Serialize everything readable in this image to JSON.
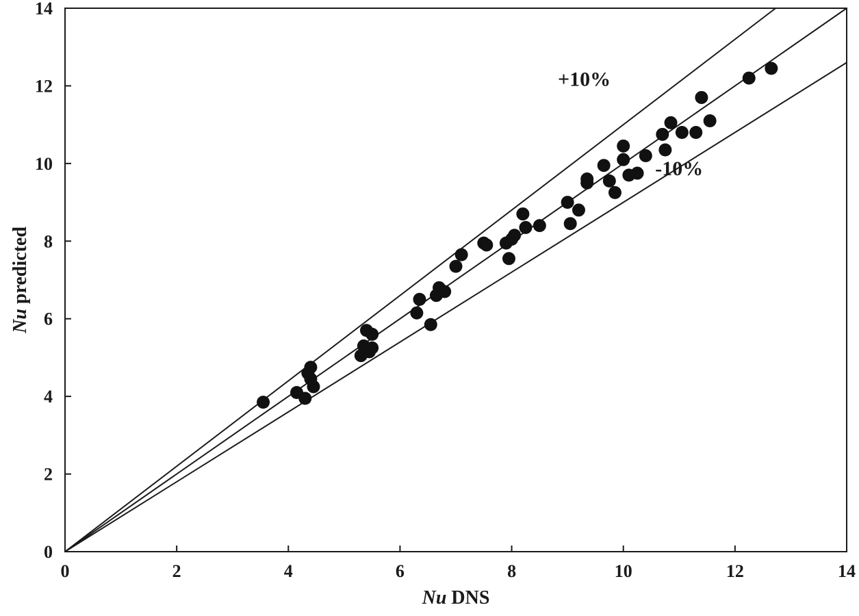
{
  "chart_data": {
    "type": "scatter",
    "title": "",
    "xlabel_italic": "Nu",
    "xlabel_rest": "DNS",
    "ylabel_italic": "Nu",
    "ylabel_rest": "predicted",
    "xlim": [
      0,
      14
    ],
    "ylim": [
      0,
      14
    ],
    "xticks": [
      0,
      2,
      4,
      6,
      8,
      10,
      12,
      14
    ],
    "yticks": [
      0,
      2,
      4,
      6,
      8,
      10,
      12,
      14
    ],
    "grid": false,
    "reference_lines": [
      {
        "name": "parity",
        "slope": 1.0
      },
      {
        "name": "plus-10-percent",
        "slope": 1.1,
        "label": "+10%"
      },
      {
        "name": "minus-10-percent",
        "slope": 0.9,
        "label": "-10%"
      }
    ],
    "annotations": [
      {
        "text": "+10%",
        "at": [
          9.3,
          12.0
        ]
      },
      {
        "text": "-10%",
        "at": [
          11.0,
          9.7
        ]
      }
    ],
    "series": [
      {
        "name": "data",
        "points": [
          [
            3.55,
            3.85
          ],
          [
            4.15,
            4.1
          ],
          [
            4.3,
            3.95
          ],
          [
            4.35,
            4.6
          ],
          [
            4.4,
            4.75
          ],
          [
            4.4,
            4.45
          ],
          [
            4.45,
            4.25
          ],
          [
            5.3,
            5.05
          ],
          [
            5.35,
            5.3
          ],
          [
            5.4,
            5.7
          ],
          [
            5.45,
            5.15
          ],
          [
            5.5,
            5.25
          ],
          [
            5.5,
            5.6
          ],
          [
            6.3,
            6.15
          ],
          [
            6.35,
            6.5
          ],
          [
            6.55,
            5.85
          ],
          [
            6.65,
            6.6
          ],
          [
            6.7,
            6.8
          ],
          [
            6.8,
            6.7
          ],
          [
            7.0,
            7.35
          ],
          [
            7.1,
            7.65
          ],
          [
            7.5,
            7.95
          ],
          [
            7.55,
            7.9
          ],
          [
            7.9,
            7.95
          ],
          [
            7.95,
            7.55
          ],
          [
            8.0,
            8.05
          ],
          [
            8.05,
            8.15
          ],
          [
            8.2,
            8.7
          ],
          [
            8.25,
            8.35
          ],
          [
            8.5,
            8.4
          ],
          [
            9.0,
            9.0
          ],
          [
            9.05,
            8.45
          ],
          [
            9.2,
            8.8
          ],
          [
            9.35,
            9.5
          ],
          [
            9.35,
            9.6
          ],
          [
            9.65,
            9.95
          ],
          [
            9.75,
            9.55
          ],
          [
            9.85,
            9.25
          ],
          [
            10.0,
            10.45
          ],
          [
            10.0,
            10.1
          ],
          [
            10.1,
            9.7
          ],
          [
            10.25,
            9.75
          ],
          [
            10.4,
            10.2
          ],
          [
            10.7,
            10.75
          ],
          [
            10.75,
            10.35
          ],
          [
            10.85,
            11.05
          ],
          [
            11.05,
            10.8
          ],
          [
            11.3,
            10.8
          ],
          [
            11.4,
            11.7
          ],
          [
            11.55,
            11.1
          ],
          [
            12.25,
            12.2
          ],
          [
            12.65,
            12.45
          ]
        ]
      }
    ]
  }
}
